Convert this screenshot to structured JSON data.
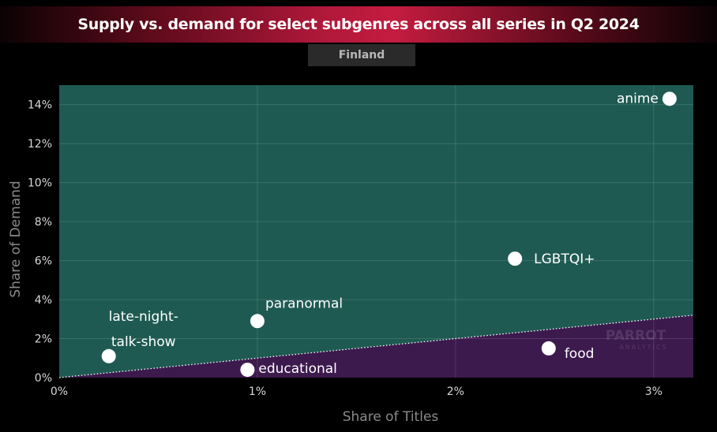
{
  "title": "Supply vs. demand for select subgenres across all series in Q2 2024",
  "subtitle": "Finland",
  "watermark": "PARROT",
  "watermark_sub": "ANALYTICS",
  "colors": {
    "above": "#1e5a52",
    "below": "#3d1a4e",
    "point": "#ffffff",
    "text": "#ffffff",
    "axis_text": "#d8d8d8",
    "axis_label": "#8a8a8a"
  },
  "chart_data": {
    "type": "scatter",
    "title": "Supply vs. demand for select subgenres across all series in Q2 2024",
    "subtitle": "Finland",
    "xlabel": "Share of Titles",
    "ylabel": "Share of Demand",
    "xlim": [
      0,
      3.2
    ],
    "ylim": [
      0,
      15
    ],
    "xticks": [
      0,
      1,
      2,
      3
    ],
    "xtick_labels": [
      "0%",
      "1%",
      "2%",
      "3%"
    ],
    "yticks": [
      0,
      2,
      4,
      6,
      8,
      10,
      12,
      14
    ],
    "ytick_labels": [
      "0%",
      "2%",
      "4%",
      "6%",
      "8%",
      "10%",
      "12%",
      "14%"
    ],
    "grid": true,
    "diagonal_line": true,
    "points": [
      {
        "label": "anime",
        "x": 3.08,
        "y": 14.3
      },
      {
        "label": "LGBTQI+",
        "x": 2.3,
        "y": 6.1
      },
      {
        "label": "paranormal",
        "x": 1.0,
        "y": 2.9
      },
      {
        "label": "late-night-talk-show",
        "label_lines": [
          "late-night-",
          "talk-show"
        ],
        "x": 0.25,
        "y": 1.1
      },
      {
        "label": "food",
        "x": 2.47,
        "y": 1.5
      },
      {
        "label": "educational",
        "x": 0.95,
        "y": 0.4
      }
    ]
  }
}
